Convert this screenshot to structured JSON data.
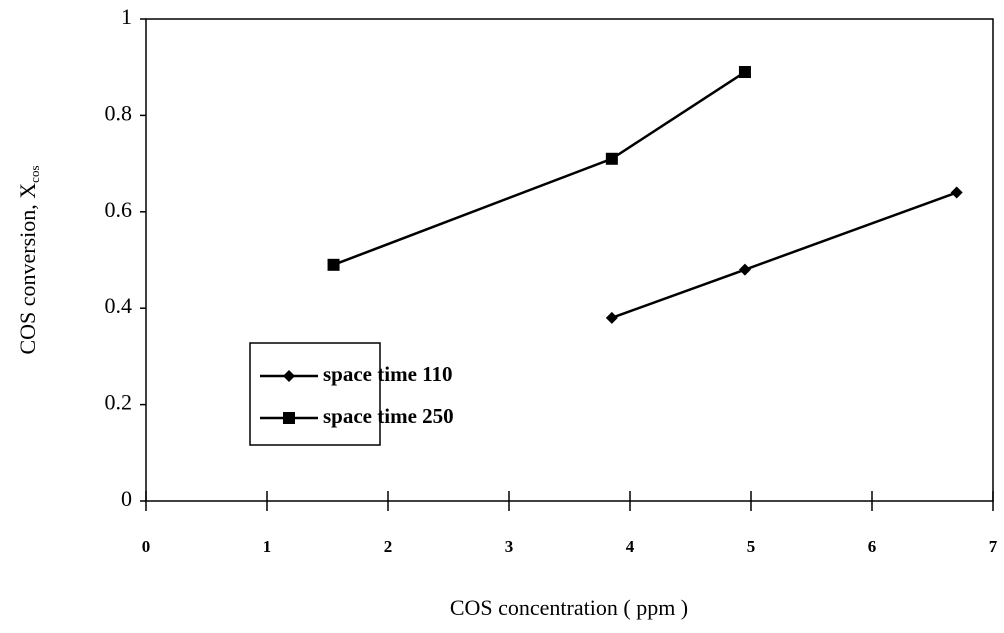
{
  "chart_data": {
    "type": "line",
    "x_label": "COS concentration ( ppm )",
    "y_label": "COS conversion, X",
    "y_label_subscript": "cos",
    "xlim": [
      0,
      7
    ],
    "xticks": [
      0,
      1,
      2,
      3,
      4,
      5,
      6,
      7
    ],
    "ylim": [
      0,
      1
    ],
    "yticks": [
      0,
      0.2,
      0.4,
      0.6,
      0.8,
      1
    ],
    "grid": false,
    "legend_position": "lower left",
    "series": [
      {
        "name": "space time 110",
        "color": "#000000",
        "marker": "diamond",
        "x": [
          3.85,
          4.95,
          6.7
        ],
        "values": [
          0.38,
          0.48,
          0.64
        ]
      },
      {
        "name": "space time 250",
        "color": "#000000",
        "marker": "square",
        "x": [
          1.55,
          3.85,
          4.95
        ],
        "values": [
          0.49,
          0.71,
          0.89
        ]
      }
    ]
  }
}
